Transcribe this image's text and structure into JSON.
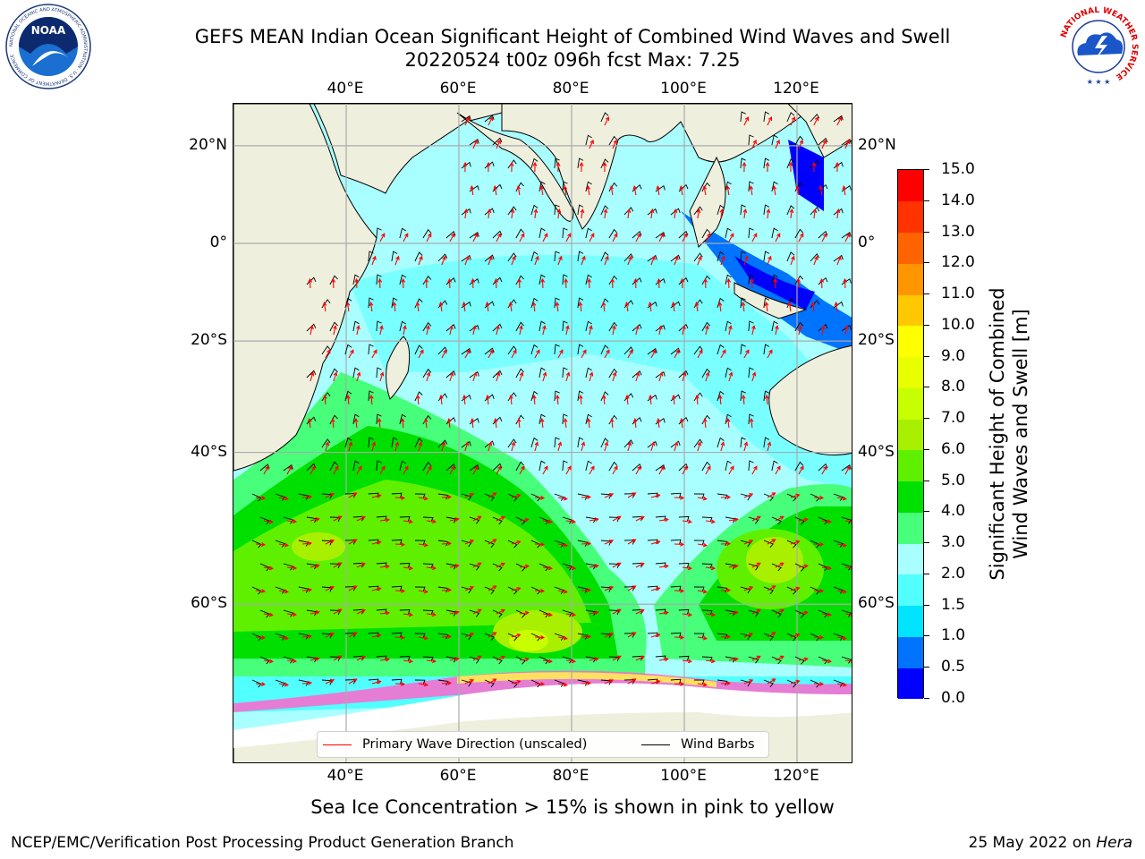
{
  "header": {
    "title": "GEFS MEAN Indian Ocean Significant Height of Combined Wind Waves and Swell",
    "subtitle": "20220524 t00z 096h fcst   Max: 7.25"
  },
  "logos": {
    "noaa_text": "NOAA",
    "noaa_ring": "NATIONAL OCEANIC AND ATMOSPHERIC ADMINISTRATION · U.S. DEPARTMENT OF COMMERCE",
    "nws_ring": "NATIONAL WEATHER SERVICE"
  },
  "map": {
    "lon_labels": [
      "40°E",
      "60°E",
      "80°E",
      "100°E",
      "120°E"
    ],
    "lon_values": [
      40,
      60,
      80,
      100,
      120
    ],
    "lat_labels": [
      "20°N",
      "0°",
      "20°S",
      "40°S",
      "60°S"
    ],
    "lat_values": [
      20,
      0,
      -20,
      -40,
      -60
    ],
    "legend": {
      "wave_label": "Primary Wave Direction (unscaled)",
      "wind_label": "Wind Barbs",
      "wave_color": "#ff0000",
      "wind_color": "#000000"
    },
    "colors": {
      "land": "#efefde",
      "ice": "#ffffff",
      "grid": "#aaaaaa"
    }
  },
  "colorbar": {
    "label_line1": "Significant Height of Combined",
    "label_line2": "Wind Waves and Swell [m]",
    "levels": [
      "0.0",
      "0.5",
      "1.0",
      "1.5",
      "2.0",
      "3.0",
      "4.0",
      "5.0",
      "6.0",
      "7.0",
      "8.0",
      "9.0",
      "10.0",
      "11.0",
      "12.0",
      "13.0",
      "14.0",
      "15.0"
    ],
    "colors": [
      "#0000ff",
      "#0073ff",
      "#00e4ff",
      "#52ffff",
      "#a9ffff",
      "#47ff7a",
      "#00e000",
      "#5ff000",
      "#a8f000",
      "#c8ff00",
      "#e8ff00",
      "#ffff00",
      "#ffc800",
      "#ff9600",
      "#ff6400",
      "#ff3200",
      "#ff0000"
    ]
  },
  "footer": {
    "note": "Sea Ice Concentration > 15% is shown in pink to yellow",
    "left": "NCEP/EMC/Verification Post Processing Product Generation Branch",
    "right_prefix": "25 May 2022 on ",
    "right_host": "Hera"
  }
}
